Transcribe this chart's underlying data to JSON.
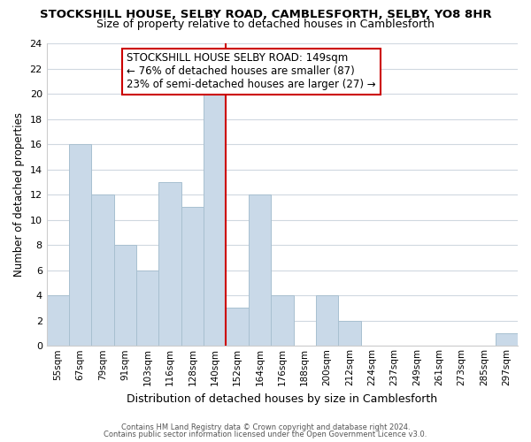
{
  "title": "STOCKSHILL HOUSE, SELBY ROAD, CAMBLESFORTH, SELBY, YO8 8HR",
  "subtitle": "Size of property relative to detached houses in Camblesforth",
  "xlabel": "Distribution of detached houses by size in Camblesforth",
  "ylabel": "Number of detached properties",
  "bin_labels": [
    "55sqm",
    "67sqm",
    "79sqm",
    "91sqm",
    "103sqm",
    "116sqm",
    "128sqm",
    "140sqm",
    "152sqm",
    "164sqm",
    "176sqm",
    "188sqm",
    "200sqm",
    "212sqm",
    "224sqm",
    "237sqm",
    "249sqm",
    "261sqm",
    "273sqm",
    "285sqm",
    "297sqm"
  ],
  "bar_heights": [
    4,
    16,
    12,
    8,
    6,
    13,
    11,
    20,
    3,
    12,
    4,
    0,
    4,
    2,
    0,
    0,
    0,
    0,
    0,
    0,
    1
  ],
  "bar_color": "#c9d9e8",
  "bar_edge_color": "#a8c0d0",
  "reference_line_color": "#cc0000",
  "annotation_box_title": "STOCKSHILL HOUSE SELBY ROAD: 149sqm",
  "annotation_line1": "← 76% of detached houses are smaller (87)",
  "annotation_line2": "23% of semi-detached houses are larger (27) →",
  "annotation_box_color": "#ffffff",
  "annotation_box_edge_color": "#cc0000",
  "ylim": [
    0,
    24
  ],
  "yticks": [
    0,
    2,
    4,
    6,
    8,
    10,
    12,
    14,
    16,
    18,
    20,
    22,
    24
  ],
  "footer1": "Contains HM Land Registry data © Crown copyright and database right 2024.",
  "footer2": "Contains public sector information licensed under the Open Government Licence v3.0.",
  "background_color": "#ffffff",
  "grid_color": "#d0d8e0"
}
